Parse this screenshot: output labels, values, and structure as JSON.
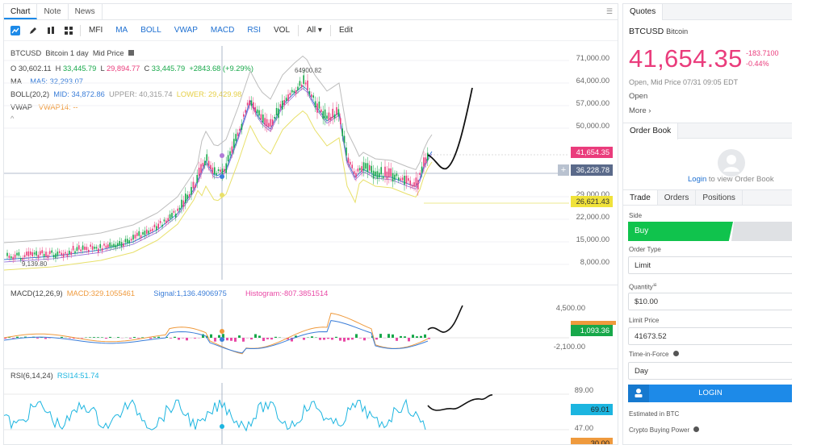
{
  "tabs": {
    "chart": "Chart",
    "note": "Note",
    "news": "News",
    "menu": "☰"
  },
  "toolbar": {
    "mfi": "MFI",
    "ma": "MA",
    "boll": "BOLL",
    "vwap": "VWAP",
    "macd": "MACD",
    "rsi": "RSI",
    "vol": "VOL",
    "all": "All ▾",
    "edit": "Edit"
  },
  "legend": {
    "symbol": "BTCUSD",
    "desc": "Bitcoin 1 day",
    "mode": "Mid Price",
    "o_label": "O",
    "o": "30,602.11",
    "h_label": "H",
    "h": "33,445.79",
    "l_label": "L",
    "l": "29,894.77",
    "c_label": "C",
    "c": "33,445.79",
    "change": "+2843.68 (+9.29%)",
    "ma_label": "MA",
    "ma5": "MA5: 32,293.07",
    "boll_label": "BOLL(20,2)",
    "boll_mid": "MID: 34,872.86",
    "boll_upper": "UPPER: 40,315.74",
    "boll_lower": "LOWER: 29,429.98",
    "vwap_label": "VWAP",
    "vwap14": "VWAP14: --",
    "collapse": "^"
  },
  "annotations": {
    "high": "64900.82",
    "low": "9,139.80"
  },
  "yaxis_main": [
    "71,000.00",
    "64,000.00",
    "57,000.00",
    "50,000.00",
    "29,000.00",
    "22,000.00",
    "15,000.00",
    "8,000.00"
  ],
  "price_tags": {
    "last": "41,654.35",
    "cross": "36,228.78",
    "lower": "26,621.43"
  },
  "macd": {
    "label": "MACD(12,26,9)",
    "value": "MACD:329.1055461",
    "signal": "Signal:1,136.4906975",
    "hist": "Histogram:-807.3851514",
    "axis_top": "4,500.00",
    "axis_bottom": "-2,100.00",
    "tag": "1,093.36"
  },
  "rsi": {
    "label": "RSI(6,14,24)",
    "value": "RSI14:51.74",
    "axis_top": "89.00",
    "axis_bottom": "47.00",
    "tag": "69.01",
    "tag2": "30.00"
  },
  "quotes": {
    "header": "Quotes",
    "symbol": "BTCUSD",
    "name": "Bitcoin",
    "price": "41,654.35",
    "change": "-183.7100",
    "change_pct": "-0.44%",
    "info": "Open, Mid Price 07/31 09:05 EDT",
    "open": "Open",
    "more": "More ›"
  },
  "orderbook": {
    "header": "Order Book",
    "login_link": "Login",
    "login_text": "to view Order Book"
  },
  "trade": {
    "tabs": [
      "Trade",
      "Orders",
      "Positions"
    ],
    "side_label": "Side",
    "buy": "Buy",
    "order_type_label": "Order Type",
    "order_type": "Limit",
    "quantity_label": "Quantity",
    "quantity_sup": "≌",
    "quantity": "$10.00",
    "limit_label": "Limit Price",
    "limit": "41673.52",
    "tif_label": "Time-in-Force",
    "tif": "Day",
    "login": "LOGIN",
    "estimated": "Estimated in BTC",
    "buying_power": "Crypto Buying Power"
  },
  "colors": {
    "up": "#17a84a",
    "down": "#ea3c7c",
    "accent": "#1d8ae8",
    "boll_upper": "#bdbdbd",
    "boll_lower": "#e8e06a",
    "ma": "#3a7dd8",
    "macd": "#ef9a3d",
    "signal": "#3a7dd8",
    "rsi": "#1cb5e0"
  }
}
